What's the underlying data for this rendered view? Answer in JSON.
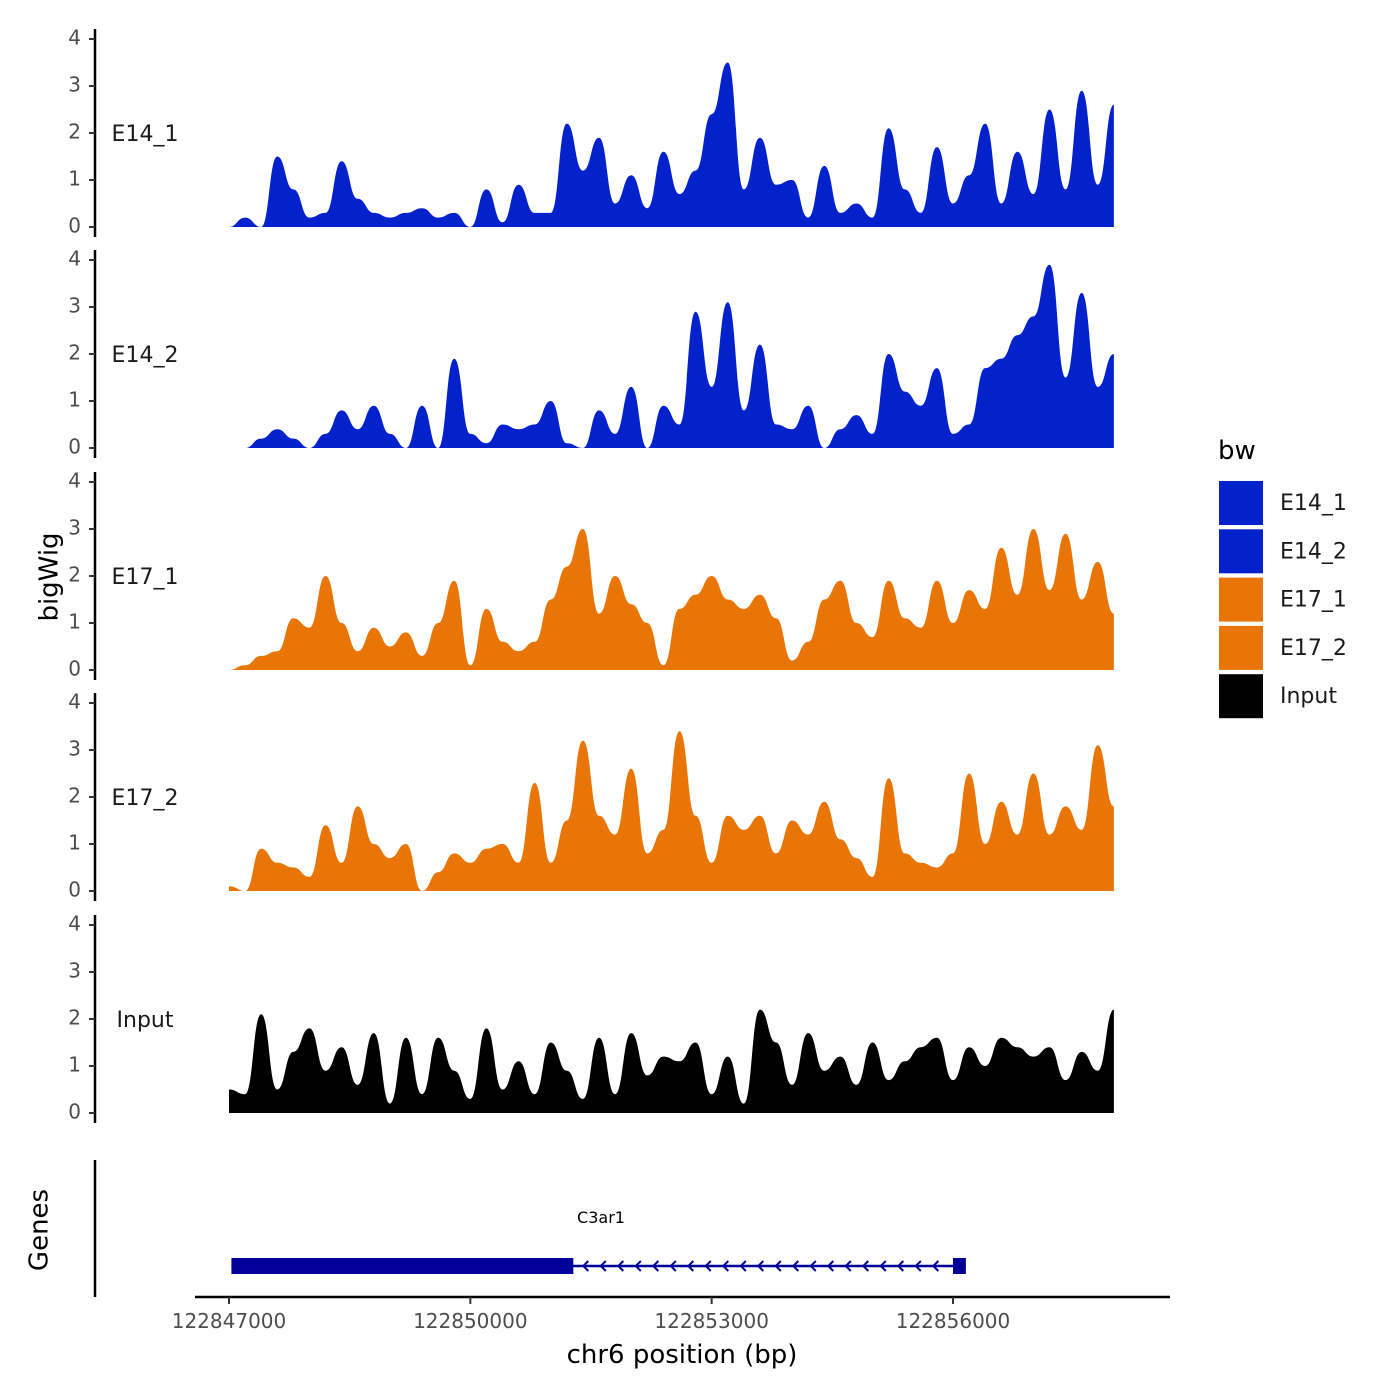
{
  "chart_data": {
    "type": "area",
    "y_axis_title": "bigWig",
    "x_axis_title": "chr6 position (bp)",
    "genes_axis_title": "Genes",
    "x_range": [
      122846850,
      122858750
    ],
    "x_ticks": [
      122847000,
      122850000,
      122853000,
      122856000
    ],
    "x_tick_labels": [
      "122847000",
      "122850000",
      "122853000",
      "122856000"
    ],
    "y_range": [
      0,
      4
    ],
    "y_ticks": [
      0,
      1,
      2,
      3,
      4
    ],
    "y_tick_labels": [
      "0",
      "1",
      "2",
      "3",
      "4"
    ],
    "legend": {
      "title": "bw",
      "entries": [
        {
          "label": "E14_1",
          "color": "#0322CC"
        },
        {
          "label": "E14_2",
          "color": "#0322CC"
        },
        {
          "label": "E17_1",
          "color": "#E87506"
        },
        {
          "label": "E17_2",
          "color": "#E87506"
        },
        {
          "label": "Input",
          "color": "#000000"
        }
      ]
    },
    "series": [
      {
        "name": "E14_1",
        "color": "#0322CC",
        "x": [
          122847000,
          122847200,
          122847400,
          122847600,
          122847800,
          122848000,
          122848200,
          122848400,
          122848600,
          122848800,
          122849000,
          122849200,
          122849400,
          122849600,
          122849800,
          122850000,
          122850200,
          122850400,
          122850600,
          122850800,
          122851000,
          122851200,
          122851400,
          122851600,
          122851800,
          122852000,
          122852200,
          122852400,
          122852600,
          122852800,
          122853000,
          122853200,
          122853400,
          122853600,
          122853800,
          122854000,
          122854200,
          122854400,
          122854600,
          122854800,
          122855000,
          122855200,
          122855400,
          122855600,
          122855800,
          122856000,
          122856200,
          122856400,
          122856600,
          122856800,
          122857000,
          122857200,
          122857400,
          122857600,
          122857800,
          122858000
        ],
        "values": [
          0.0,
          0.2,
          0.0,
          1.5,
          0.8,
          0.2,
          0.3,
          1.4,
          0.6,
          0.3,
          0.2,
          0.3,
          0.4,
          0.2,
          0.3,
          0.0,
          0.8,
          0.1,
          0.9,
          0.3,
          0.3,
          2.2,
          1.2,
          1.9,
          0.5,
          1.1,
          0.4,
          1.6,
          0.7,
          1.2,
          2.4,
          3.5,
          0.8,
          1.9,
          0.9,
          1.0,
          0.2,
          1.3,
          0.3,
          0.5,
          0.2,
          2.1,
          0.8,
          0.3,
          1.7,
          0.5,
          1.1,
          2.2,
          0.5,
          1.6,
          0.7,
          2.5,
          0.8,
          2.9,
          0.9,
          2.6
        ]
      },
      {
        "name": "E14_2",
        "color": "#0322CC",
        "x": [
          122847000,
          122847200,
          122847400,
          122847600,
          122847800,
          122848000,
          122848200,
          122848400,
          122848600,
          122848800,
          122849000,
          122849200,
          122849400,
          122849600,
          122849800,
          122850000,
          122850200,
          122850400,
          122850600,
          122850800,
          122851000,
          122851200,
          122851400,
          122851600,
          122851800,
          122852000,
          122852200,
          122852400,
          122852600,
          122852800,
          122853000,
          122853200,
          122853400,
          122853600,
          122853800,
          122854000,
          122854200,
          122854400,
          122854600,
          122854800,
          122855000,
          122855200,
          122855400,
          122855600,
          122855800,
          122856000,
          122856200,
          122856400,
          122856600,
          122856800,
          122857000,
          122857200,
          122857400,
          122857600,
          122857800,
          122858000
        ],
        "values": [
          0.0,
          0.0,
          0.2,
          0.4,
          0.2,
          0.0,
          0.3,
          0.8,
          0.4,
          0.9,
          0.3,
          0.0,
          0.9,
          0.0,
          1.9,
          0.3,
          0.1,
          0.5,
          0.4,
          0.5,
          1.0,
          0.1,
          0.0,
          0.8,
          0.3,
          1.3,
          0.0,
          0.9,
          0.5,
          2.9,
          1.3,
          3.1,
          0.8,
          2.2,
          0.5,
          0.4,
          0.9,
          0.0,
          0.4,
          0.7,
          0.3,
          2.0,
          1.2,
          0.9,
          1.7,
          0.3,
          0.5,
          1.7,
          1.9,
          2.4,
          2.8,
          3.9,
          1.5,
          3.3,
          1.3,
          2.0
        ]
      },
      {
        "name": "E17_1",
        "color": "#E87506",
        "x": [
          122847000,
          122847200,
          122847400,
          122847600,
          122847800,
          122848000,
          122848200,
          122848400,
          122848600,
          122848800,
          122849000,
          122849200,
          122849400,
          122849600,
          122849800,
          122850000,
          122850200,
          122850400,
          122850600,
          122850800,
          122851000,
          122851200,
          122851400,
          122851600,
          122851800,
          122852000,
          122852200,
          122852400,
          122852600,
          122852800,
          122853000,
          122853200,
          122853400,
          122853600,
          122853800,
          122854000,
          122854200,
          122854400,
          122854600,
          122854800,
          122855000,
          122855200,
          122855400,
          122855600,
          122855800,
          122856000,
          122856200,
          122856400,
          122856600,
          122856800,
          122857000,
          122857200,
          122857400,
          122857600,
          122857800,
          122858000
        ],
        "values": [
          0.0,
          0.1,
          0.3,
          0.4,
          1.1,
          0.9,
          2.0,
          1.0,
          0.4,
          0.9,
          0.5,
          0.8,
          0.3,
          1.0,
          1.9,
          0.1,
          1.3,
          0.6,
          0.4,
          0.6,
          1.5,
          2.2,
          3.0,
          1.2,
          2.0,
          1.4,
          1.0,
          0.1,
          1.3,
          1.6,
          2.0,
          1.5,
          1.3,
          1.6,
          1.1,
          0.2,
          0.6,
          1.5,
          1.9,
          1.0,
          0.7,
          1.9,
          1.1,
          0.9,
          1.9,
          1.0,
          1.7,
          1.3,
          2.6,
          1.6,
          3.0,
          1.7,
          2.9,
          1.5,
          2.3,
          1.2
        ]
      },
      {
        "name": "E17_2",
        "color": "#E87506",
        "x": [
          122847000,
          122847200,
          122847400,
          122847600,
          122847800,
          122848000,
          122848200,
          122848400,
          122848600,
          122848800,
          122849000,
          122849200,
          122849400,
          122849600,
          122849800,
          122850000,
          122850200,
          122850400,
          122850600,
          122850800,
          122851000,
          122851200,
          122851400,
          122851600,
          122851800,
          122852000,
          122852200,
          122852400,
          122852600,
          122852800,
          122853000,
          122853200,
          122853400,
          122853600,
          122853800,
          122854000,
          122854200,
          122854400,
          122854600,
          122854800,
          122855000,
          122855200,
          122855400,
          122855600,
          122855800,
          122856000,
          122856200,
          122856400,
          122856600,
          122856800,
          122857000,
          122857200,
          122857400,
          122857600,
          122857800,
          122858000
        ],
        "values": [
          0.1,
          0.0,
          0.9,
          0.6,
          0.5,
          0.3,
          1.4,
          0.6,
          1.8,
          1.0,
          0.7,
          1.0,
          0.0,
          0.4,
          0.8,
          0.6,
          0.9,
          1.0,
          0.6,
          2.3,
          0.6,
          1.5,
          3.2,
          1.6,
          1.2,
          2.6,
          0.8,
          1.3,
          3.4,
          1.6,
          0.6,
          1.6,
          1.3,
          1.6,
          0.8,
          1.5,
          1.2,
          1.9,
          1.1,
          0.7,
          0.3,
          2.4,
          0.8,
          0.6,
          0.5,
          0.8,
          2.5,
          1.0,
          1.9,
          1.2,
          2.5,
          1.2,
          1.8,
          1.3,
          3.1,
          1.8
        ]
      },
      {
        "name": "Input",
        "color": "#000000",
        "x": [
          122847000,
          122847200,
          122847400,
          122847600,
          122847800,
          122848000,
          122848200,
          122848400,
          122848600,
          122848800,
          122849000,
          122849200,
          122849400,
          122849600,
          122849800,
          122850000,
          122850200,
          122850400,
          122850600,
          122850800,
          122851000,
          122851200,
          122851400,
          122851600,
          122851800,
          122852000,
          122852200,
          122852400,
          122852600,
          122852800,
          122853000,
          122853200,
          122853400,
          122853600,
          122853800,
          122854000,
          122854200,
          122854400,
          122854600,
          122854800,
          122855000,
          122855200,
          122855400,
          122855600,
          122855800,
          122856000,
          122856200,
          122856400,
          122856600,
          122856800,
          122857000,
          122857200,
          122857400,
          122857600,
          122857800,
          122858000
        ],
        "values": [
          0.5,
          0.4,
          2.1,
          0.5,
          1.3,
          1.8,
          0.9,
          1.4,
          0.6,
          1.7,
          0.2,
          1.6,
          0.4,
          1.6,
          0.9,
          0.3,
          1.8,
          0.5,
          1.1,
          0.4,
          1.5,
          0.9,
          0.3,
          1.6,
          0.4,
          1.7,
          0.8,
          1.2,
          1.1,
          1.5,
          0.4,
          1.2,
          0.2,
          2.2,
          1.5,
          0.6,
          1.7,
          0.9,
          1.2,
          0.6,
          1.5,
          0.7,
          1.1,
          1.4,
          1.6,
          0.7,
          1.4,
          1.0,
          1.6,
          1.4,
          1.2,
          1.4,
          0.7,
          1.3,
          0.9,
          2.2
        ]
      }
    ],
    "gene": {
      "name": "C3ar1",
      "color": "#000099",
      "strand": "-",
      "start": 122847030,
      "end": 122856160,
      "thick_blocks": [
        [
          122847030,
          122851280
        ],
        [
          122856000,
          122856160
        ]
      ]
    }
  }
}
